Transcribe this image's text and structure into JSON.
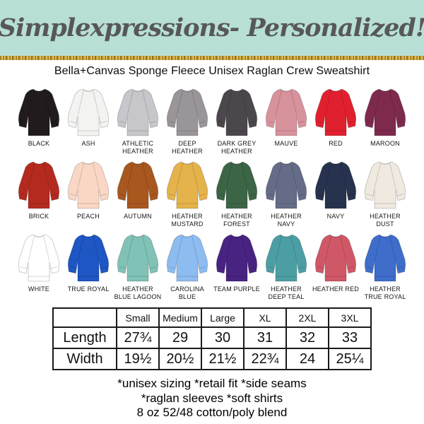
{
  "header": {
    "brand": "Simplexpressions- Personalized!",
    "banner_bg": "#b7dfd5",
    "banner_text_color": "#57575a",
    "glitter_gold": "#caa63c"
  },
  "product_title": "Bella+Canvas Sponge Fleece Unisex Raglan Crew Sweatshirt",
  "colors": [
    {
      "label": "BLACK",
      "hex": "#211b1e"
    },
    {
      "label": "ASH",
      "hex": "#f3f3f1"
    },
    {
      "label": "ATHLETIC HEATHER",
      "hex": "#c6c6cb"
    },
    {
      "label": "DEEP HEATHER",
      "hex": "#999599"
    },
    {
      "label": "DARK GREY HEATHER",
      "hex": "#4c474c"
    },
    {
      "label": "MAUVE",
      "hex": "#d8929c"
    },
    {
      "label": "RED",
      "hex": "#e1202f"
    },
    {
      "label": "MAROON",
      "hex": "#7e2a4d"
    },
    {
      "label": "BRICK",
      "hex": "#b42a1f"
    },
    {
      "label": "PEACH",
      "hex": "#f9d7c4"
    },
    {
      "label": "AUTUMN",
      "hex": "#a8571f"
    },
    {
      "label": "HEATHER MUSTARD",
      "hex": "#e5b34b"
    },
    {
      "label": "HEATHER FOREST",
      "hex": "#3c6546"
    },
    {
      "label": "HEATHER NAVY",
      "hex": "#656c88"
    },
    {
      "label": "NAVY",
      "hex": "#27324f"
    },
    {
      "label": "HEATHER DUST",
      "hex": "#efe9e0"
    },
    {
      "label": "WHITE",
      "hex": "#ffffff"
    },
    {
      "label": "TRUE ROYAL",
      "hex": "#1e56c4"
    },
    {
      "label": "HEATHER BLUE LAGOON",
      "hex": "#80c2b6"
    },
    {
      "label": "CAROLINA BLUE",
      "hex": "#8cbcf0"
    },
    {
      "label": "TEAM PURPLE",
      "hex": "#482381"
    },
    {
      "label": "HEATHER DEEP TEAL",
      "hex": "#4b9fa4"
    },
    {
      "label": "HEATHER RED",
      "hex": "#d05866"
    },
    {
      "label": "HEATHER TRUE ROYAL",
      "hex": "#3e6dca"
    }
  ],
  "size_table": {
    "columns": [
      "",
      "Small",
      "Medium",
      "Large",
      "XL",
      "2XL",
      "3XL"
    ],
    "rows": [
      {
        "label": "Length",
        "values": [
          "27¾",
          "29",
          "30",
          "31",
          "32",
          "33"
        ]
      },
      {
        "label": "Width",
        "values": [
          "19½",
          "20½",
          "21½",
          "22¾",
          "24",
          "25¼"
        ]
      }
    ]
  },
  "footnotes": [
    "*unisex sizing *retail fit *side seams",
    "*raglan sleeves *soft shirts",
    "8 oz 52/48 cotton/poly blend"
  ]
}
